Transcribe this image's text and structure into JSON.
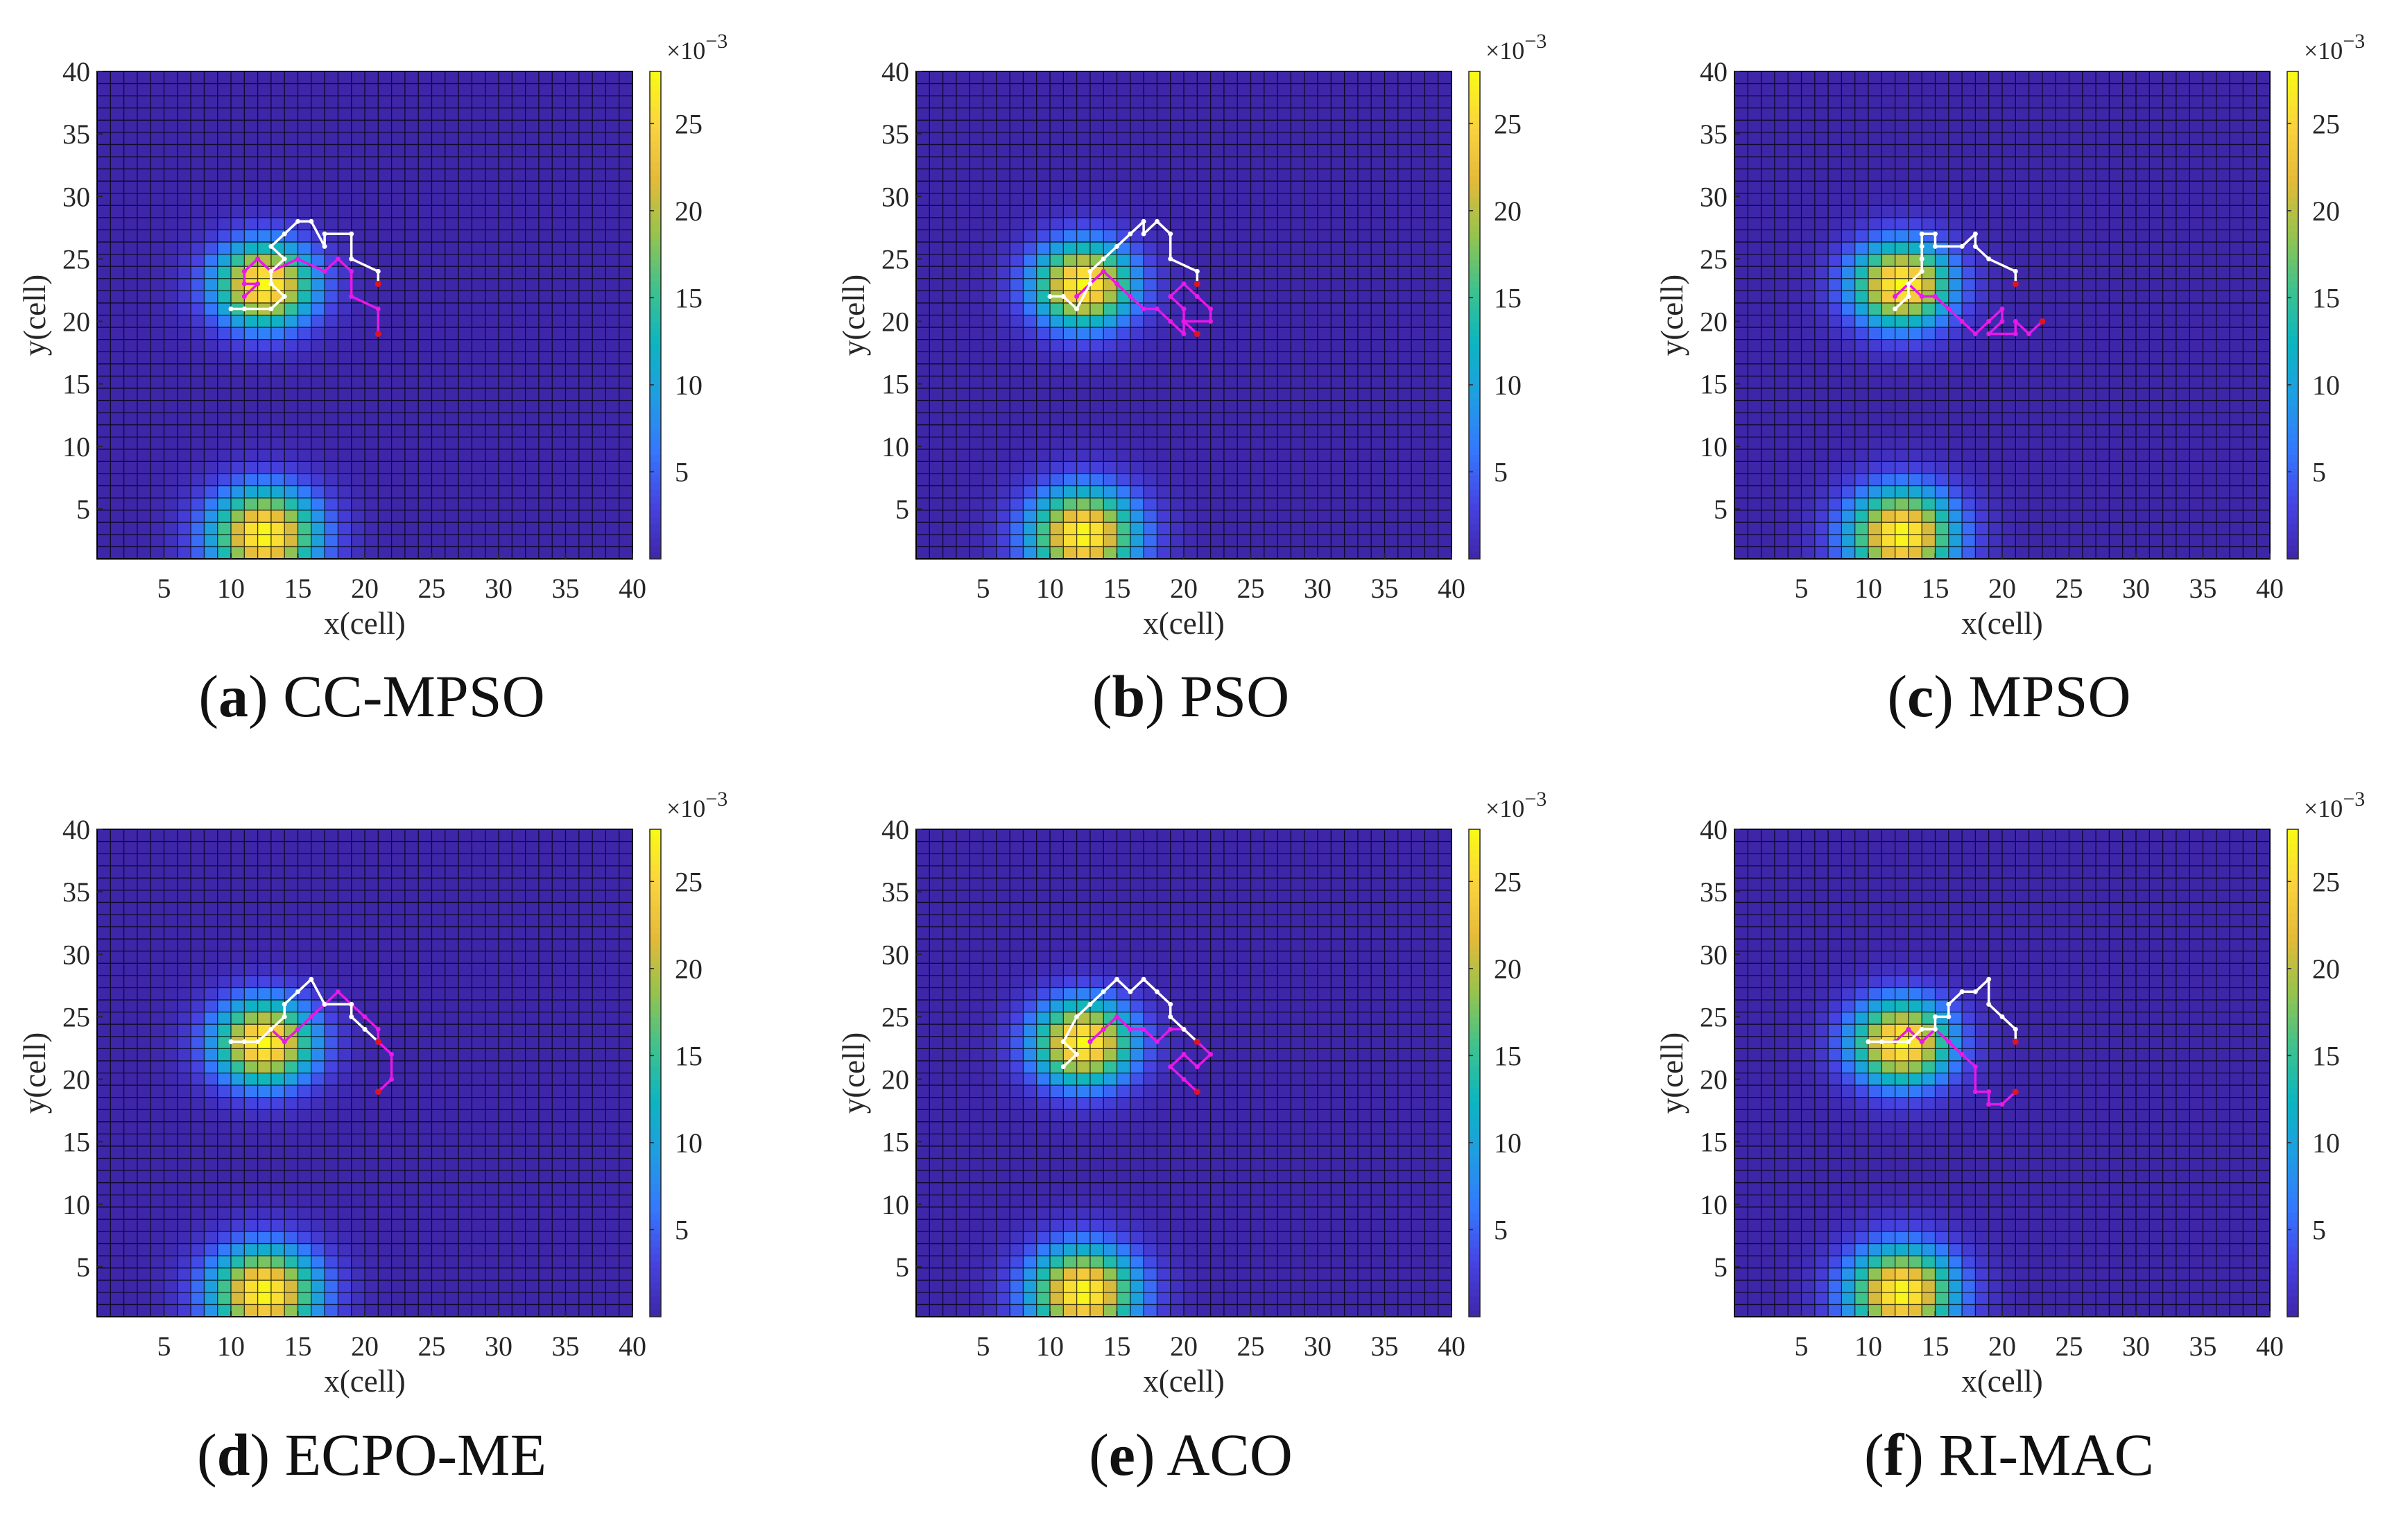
{
  "figure": {
    "grid_size": 40,
    "peaks": [
      {
        "x": 12.5,
        "y": 22.5,
        "sx": 2.6,
        "sy": 2.4,
        "amp": 28
      },
      {
        "x": 12.5,
        "y": 2.0,
        "sx": 2.8,
        "sy": 2.6,
        "amp": 28
      }
    ]
  },
  "colors": {
    "background_cell": "#3e26a8",
    "grid_line": "#000000",
    "path_white": "#ffffff",
    "path_magenta": "#e619e6",
    "path_end_red": "#e0141e",
    "colormap": [
      "#3e26a8",
      "#4643e2",
      "#3578fe",
      "#1f9de3",
      "#0db5c0",
      "#3fc28d",
      "#97c34d",
      "#e4ba39",
      "#fbd33e",
      "#f9fb15"
    ]
  },
  "chart_data": [
    {
      "type": "heatmap",
      "caption_letter": "a",
      "caption_text": "CC-MPSO",
      "xlabel": "x(cell)",
      "ylabel": "y(cell)",
      "xlim": [
        0,
        40
      ],
      "ylim": [
        1,
        40
      ],
      "x_ticks": [
        5,
        10,
        15,
        20,
        25,
        30,
        35,
        40
      ],
      "y_ticks": [
        5,
        10,
        15,
        20,
        25,
        30,
        35,
        40
      ],
      "colorbar": {
        "range": [
          0,
          28
        ],
        "ticks": [
          5,
          10,
          15,
          20,
          25
        ],
        "exponent_base": "×10",
        "exponent_power": "−3"
      },
      "paths": {
        "white": [
          [
            21,
            23
          ],
          [
            21,
            24
          ],
          [
            19,
            25
          ],
          [
            19,
            27
          ],
          [
            17,
            27
          ],
          [
            17,
            26
          ],
          [
            16,
            28
          ],
          [
            15,
            28
          ],
          [
            14,
            27
          ],
          [
            13,
            26
          ],
          [
            14,
            25
          ],
          [
            13,
            24
          ],
          [
            13,
            23
          ],
          [
            14,
            22
          ],
          [
            13,
            21
          ],
          [
            11,
            21
          ],
          [
            10,
            21
          ]
        ],
        "magenta": [
          [
            21,
            19
          ],
          [
            21,
            21
          ],
          [
            19,
            22
          ],
          [
            19,
            24
          ],
          [
            18,
            25
          ],
          [
            17,
            24
          ],
          [
            15,
            25
          ],
          [
            13,
            24
          ],
          [
            12,
            25
          ],
          [
            11,
            24
          ],
          [
            11,
            23
          ],
          [
            12,
            23
          ],
          [
            11,
            22
          ]
        ]
      }
    },
    {
      "type": "heatmap",
      "caption_letter": "b",
      "caption_text": "PSO",
      "xlabel": "x(cell)",
      "ylabel": "y(cell)",
      "xlim": [
        0,
        40
      ],
      "ylim": [
        1,
        40
      ],
      "x_ticks": [
        5,
        10,
        15,
        20,
        25,
        30,
        35,
        40
      ],
      "y_ticks": [
        5,
        10,
        15,
        20,
        25,
        30,
        35,
        40
      ],
      "colorbar": {
        "range": [
          0,
          28
        ],
        "ticks": [
          5,
          10,
          15,
          20,
          25
        ],
        "exponent_base": "×10",
        "exponent_power": "−3"
      },
      "paths": {
        "white": [
          [
            21,
            23
          ],
          [
            21,
            24
          ],
          [
            19,
            25
          ],
          [
            19,
            27
          ],
          [
            18,
            28
          ],
          [
            17,
            27
          ],
          [
            17,
            28
          ],
          [
            16,
            27
          ],
          [
            15,
            26
          ],
          [
            14,
            25
          ],
          [
            13,
            24
          ],
          [
            13,
            23
          ],
          [
            12,
            21
          ],
          [
            11,
            22
          ],
          [
            10,
            22
          ]
        ],
        "magenta": [
          [
            21,
            19
          ],
          [
            20,
            20
          ],
          [
            22,
            20
          ],
          [
            22,
            21
          ],
          [
            21,
            22
          ],
          [
            20,
            23
          ],
          [
            19,
            22
          ],
          [
            20,
            21
          ],
          [
            20,
            19
          ],
          [
            19,
            20
          ],
          [
            18,
            21
          ],
          [
            17,
            21
          ],
          [
            16,
            22
          ],
          [
            15,
            23
          ],
          [
            14,
            24
          ],
          [
            13,
            23
          ],
          [
            12,
            22
          ]
        ]
      }
    },
    {
      "type": "heatmap",
      "caption_letter": "c",
      "caption_text": "MPSO",
      "xlabel": "x(cell)",
      "ylabel": "y(cell)",
      "xlim": [
        0,
        40
      ],
      "ylim": [
        1,
        40
      ],
      "x_ticks": [
        5,
        10,
        15,
        20,
        25,
        30,
        35,
        40
      ],
      "y_ticks": [
        5,
        10,
        15,
        20,
        25,
        30,
        35,
        40
      ],
      "colorbar": {
        "range": [
          0,
          28
        ],
        "ticks": [
          5,
          10,
          15,
          20,
          25
        ],
        "exponent_base": "×10",
        "exponent_power": "−3"
      },
      "paths": {
        "white": [
          [
            21,
            23
          ],
          [
            21,
            24
          ],
          [
            19,
            25
          ],
          [
            18,
            26
          ],
          [
            18,
            27
          ],
          [
            17,
            26
          ],
          [
            15,
            26
          ],
          [
            15,
            27
          ],
          [
            14,
            27
          ],
          [
            14,
            26
          ],
          [
            14,
            25
          ],
          [
            14,
            24
          ],
          [
            13,
            23
          ],
          [
            13,
            22
          ],
          [
            12,
            21
          ]
        ],
        "magenta": [
          [
            23,
            20
          ],
          [
            22,
            19
          ],
          [
            21,
            20
          ],
          [
            21,
            19
          ],
          [
            19,
            19
          ],
          [
            20,
            20
          ],
          [
            20,
            21
          ],
          [
            19,
            20
          ],
          [
            18,
            19
          ],
          [
            17,
            20
          ],
          [
            16,
            21
          ],
          [
            15,
            22
          ],
          [
            14,
            22
          ],
          [
            13,
            23
          ],
          [
            12,
            22
          ]
        ]
      }
    },
    {
      "type": "heatmap",
      "caption_letter": "d",
      "caption_text": "ECPO-ME",
      "xlabel": "x(cell)",
      "ylabel": "y(cell)",
      "xlim": [
        0,
        40
      ],
      "ylim": [
        1,
        40
      ],
      "x_ticks": [
        5,
        10,
        15,
        20,
        25,
        30,
        35,
        40
      ],
      "y_ticks": [
        5,
        10,
        15,
        20,
        25,
        30,
        35,
        40
      ],
      "colorbar": {
        "range": [
          0,
          28
        ],
        "ticks": [
          5,
          10,
          15,
          20,
          25
        ],
        "exponent_base": "×10",
        "exponent_power": "−3"
      },
      "paths": {
        "white": [
          [
            21,
            23
          ],
          [
            20,
            24
          ],
          [
            19,
            25
          ],
          [
            19,
            26
          ],
          [
            17,
            26
          ],
          [
            16,
            28
          ],
          [
            15,
            27
          ],
          [
            14,
            26
          ],
          [
            14,
            25
          ],
          [
            13,
            24
          ],
          [
            12,
            23
          ],
          [
            11,
            23
          ],
          [
            10,
            23
          ]
        ],
        "magenta": [
          [
            21,
            19
          ],
          [
            22,
            20
          ],
          [
            22,
            22
          ],
          [
            21,
            23
          ],
          [
            21,
            24
          ],
          [
            20,
            25
          ],
          [
            19,
            26
          ],
          [
            18,
            27
          ],
          [
            17,
            26
          ],
          [
            16,
            25
          ],
          [
            15,
            24
          ],
          [
            14,
            23
          ],
          [
            13,
            24
          ],
          [
            12,
            23
          ]
        ]
      }
    },
    {
      "type": "heatmap",
      "caption_letter": "e",
      "caption_text": "ACO",
      "xlabel": "x(cell)",
      "ylabel": "y(cell)",
      "xlim": [
        0,
        40
      ],
      "ylim": [
        1,
        40
      ],
      "x_ticks": [
        5,
        10,
        15,
        20,
        25,
        30,
        35,
        40
      ],
      "y_ticks": [
        5,
        10,
        15,
        20,
        25,
        30,
        35,
        40
      ],
      "colorbar": {
        "range": [
          0,
          28
        ],
        "ticks": [
          5,
          10,
          15,
          20,
          25
        ],
        "exponent_base": "×10",
        "exponent_power": "−3"
      },
      "paths": {
        "white": [
          [
            21,
            23
          ],
          [
            20,
            24
          ],
          [
            19,
            25
          ],
          [
            19,
            26
          ],
          [
            18,
            27
          ],
          [
            17,
            28
          ],
          [
            16,
            27
          ],
          [
            15,
            28
          ],
          [
            14,
            27
          ],
          [
            13,
            26
          ],
          [
            12,
            25
          ],
          [
            11,
            23
          ],
          [
            12,
            22
          ],
          [
            11,
            21
          ]
        ],
        "magenta": [
          [
            21,
            19
          ],
          [
            20,
            20
          ],
          [
            19,
            21
          ],
          [
            20,
            22
          ],
          [
            21,
            21
          ],
          [
            22,
            22
          ],
          [
            21,
            23
          ],
          [
            20,
            24
          ],
          [
            19,
            24
          ],
          [
            18,
            23
          ],
          [
            17,
            24
          ],
          [
            16,
            24
          ],
          [
            15,
            25
          ],
          [
            14,
            24
          ],
          [
            13,
            23
          ]
        ]
      }
    },
    {
      "type": "heatmap",
      "caption_letter": "f",
      "caption_text": "RI-MAC",
      "xlabel": "x(cell)",
      "ylabel": "y(cell)",
      "xlim": [
        0,
        40
      ],
      "ylim": [
        1,
        40
      ],
      "x_ticks": [
        5,
        10,
        15,
        20,
        25,
        30,
        35,
        40
      ],
      "y_ticks": [
        5,
        10,
        15,
        20,
        25,
        30,
        35,
        40
      ],
      "colorbar": {
        "range": [
          0,
          28
        ],
        "ticks": [
          5,
          10,
          15,
          20,
          25
        ],
        "exponent_base": "×10",
        "exponent_power": "−3"
      },
      "paths": {
        "white": [
          [
            21,
            23
          ],
          [
            21,
            24
          ],
          [
            20,
            25
          ],
          [
            19,
            26
          ],
          [
            19,
            28
          ],
          [
            18,
            27
          ],
          [
            17,
            27
          ],
          [
            16,
            26
          ],
          [
            16,
            25
          ],
          [
            15,
            25
          ],
          [
            15,
            24
          ],
          [
            14,
            24
          ],
          [
            13,
            23
          ],
          [
            11,
            23
          ],
          [
            10,
            23
          ]
        ],
        "magenta": [
          [
            21,
            19
          ],
          [
            20,
            18
          ],
          [
            19,
            18
          ],
          [
            19,
            19
          ],
          [
            18,
            19
          ],
          [
            18,
            21
          ],
          [
            17,
            22
          ],
          [
            16,
            23
          ],
          [
            15,
            24
          ],
          [
            14,
            23
          ],
          [
            13,
            24
          ],
          [
            12,
            23
          ],
          [
            11,
            23
          ]
        ]
      }
    }
  ]
}
